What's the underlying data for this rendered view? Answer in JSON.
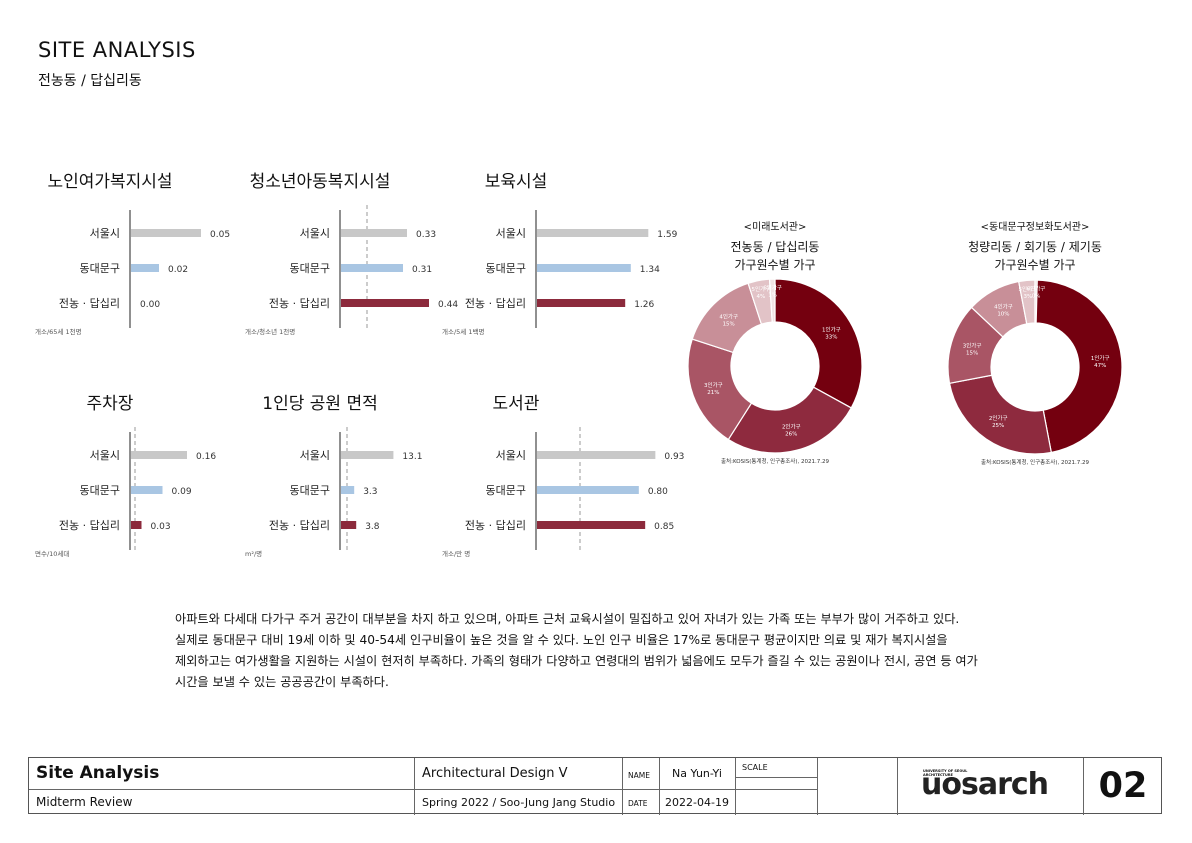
{
  "page": {
    "title": "SITE ANALYSIS",
    "subtitle": "전농동 / 답십리동"
  },
  "paragraph": [
    "아파트와 다세대 다가구 주거 공간이 대부분을 차지 하고 있으며, 아파트 근처 교육시설이 밀집하고 있어 자녀가 있는 가족 또는 부부가 많이 거주하고 있다.",
    "실제로 동대문구 대비 19세 이하 및 40-54세 인구비율이 높은 것을 알  수 있다. 노인 인구 비율은 17%로 동대문구 평균이지만 의료 및 재가 복지시설을",
    "제외하고는 여가생활을 지원하는 시설이 현저히 부족하다. 가족의 형태가 다양하고 연령대의 범위가 넓음에도 모두가 즐길 수 있는 공원이나 전시, 공연 등 여가",
    "시간을 보낼 수 있는 공공공간이 부족하다."
  ],
  "colors": {
    "seoul": "#c8c8c8",
    "dongdaemun": "#a9c6e3",
    "site": "#8c2a3c",
    "donut": [
      "#74000f",
      "#8e2a3e",
      "#a95565",
      "#c88f98",
      "#e2c3c7",
      "#f1e3e4"
    ]
  },
  "chart_data": [
    {
      "type": "bar",
      "title": "노인여가복지시설",
      "categories": [
        "서울시",
        "동대문구",
        "전농 · 답십리"
      ],
      "values": [
        0.05,
        0.02,
        0.0
      ],
      "labels": [
        "0.05",
        "0.02",
        "0.00"
      ],
      "unit": "개소/65세 1천명",
      "ref_line": false
    },
    {
      "type": "bar",
      "title": "청소년아동복지시설",
      "categories": [
        "서울시",
        "동대문구",
        "전농 · 답십리"
      ],
      "values": [
        0.33,
        0.31,
        0.44
      ],
      "labels": [
        "0.33",
        "0.31",
        "0.44"
      ],
      "unit": "개소/청소년 1천명",
      "ref_line": true
    },
    {
      "type": "bar",
      "title": "보육시설",
      "categories": [
        "서울시",
        "동대문구",
        "전농 · 답십리"
      ],
      "values": [
        1.59,
        1.34,
        1.26
      ],
      "labels": [
        "1.59",
        "1.34",
        "1.26"
      ],
      "unit": "개소/5세 1백명",
      "ref_line": false
    },
    {
      "type": "bar",
      "title": "주차장",
      "categories": [
        "서울시",
        "동대문구",
        "전농 · 답십리"
      ],
      "values": [
        0.16,
        0.09,
        0.03
      ],
      "labels": [
        "0.16",
        "0.09",
        "0.03"
      ],
      "unit": "면수/10세대",
      "ref_line": true
    },
    {
      "type": "bar",
      "title": "1인당 공원 면적",
      "categories": [
        "서울시",
        "동대문구",
        "전농 · 답십리"
      ],
      "values": [
        13.1,
        3.3,
        3.8
      ],
      "labels": [
        "13.1",
        "3.3",
        "3.8"
      ],
      "unit": "m²/명",
      "ref_line": true
    },
    {
      "type": "bar",
      "title": "도서관",
      "categories": [
        "서울시",
        "동대문구",
        "전농 · 답십리"
      ],
      "values": [
        0.93,
        0.8,
        0.85
      ],
      "labels": [
        "0.93",
        "0.80",
        "0.85"
      ],
      "unit": "개소/만 명",
      "ref_line": true
    },
    {
      "type": "pie",
      "header": "<미래도서관>",
      "title": [
        "전농동 / 답십리동",
        "가구원수별 가구"
      ],
      "slices": [
        {
          "label": "1인가구",
          "value": 33
        },
        {
          "label": "2인가구",
          "value": 26
        },
        {
          "label": "3인가구",
          "value": 21
        },
        {
          "label": "4인가구",
          "value": 15
        },
        {
          "label": "5인가구",
          "value": 4
        },
        {
          "label": "6인가구",
          "value": 1
        }
      ],
      "source": "출처:KOSIS(통계청, 인구총조사), 2021.7.29"
    },
    {
      "type": "pie",
      "header": "<동대문구정보화도서관>",
      "title": [
        "청량리동 / 회기동 / 제기동",
        "가구원수별 가구"
      ],
      "slices": [
        {
          "label": "1인가구",
          "value": 47
        },
        {
          "label": "2인가구",
          "value": 25
        },
        {
          "label": "3인가구",
          "value": 15
        },
        {
          "label": "4인가구",
          "value": 10
        },
        {
          "label": "5인가구",
          "value": 3
        },
        {
          "label": "6인가구",
          "value": 0
        }
      ],
      "source": "출처:KOSIS(통계청, 인구총조사), 2021.7.29"
    }
  ],
  "title_block": {
    "sheet_title": "Site Analysis",
    "sheet_subtitle": "Midterm Review",
    "course": "Architectural Design V",
    "studio": "Spring 2022 / Soo-Jung Jang Studio",
    "name_label": "NAME",
    "name_value": "Na Yun-Yi",
    "date_label": "DATE",
    "date_value": "2022-04-19",
    "scale_label": "SCALE",
    "logo_small": "UNIVERSITY OF SEOUL ARCHITECTURE",
    "logo_text": "uosarch",
    "page_number": "02"
  }
}
